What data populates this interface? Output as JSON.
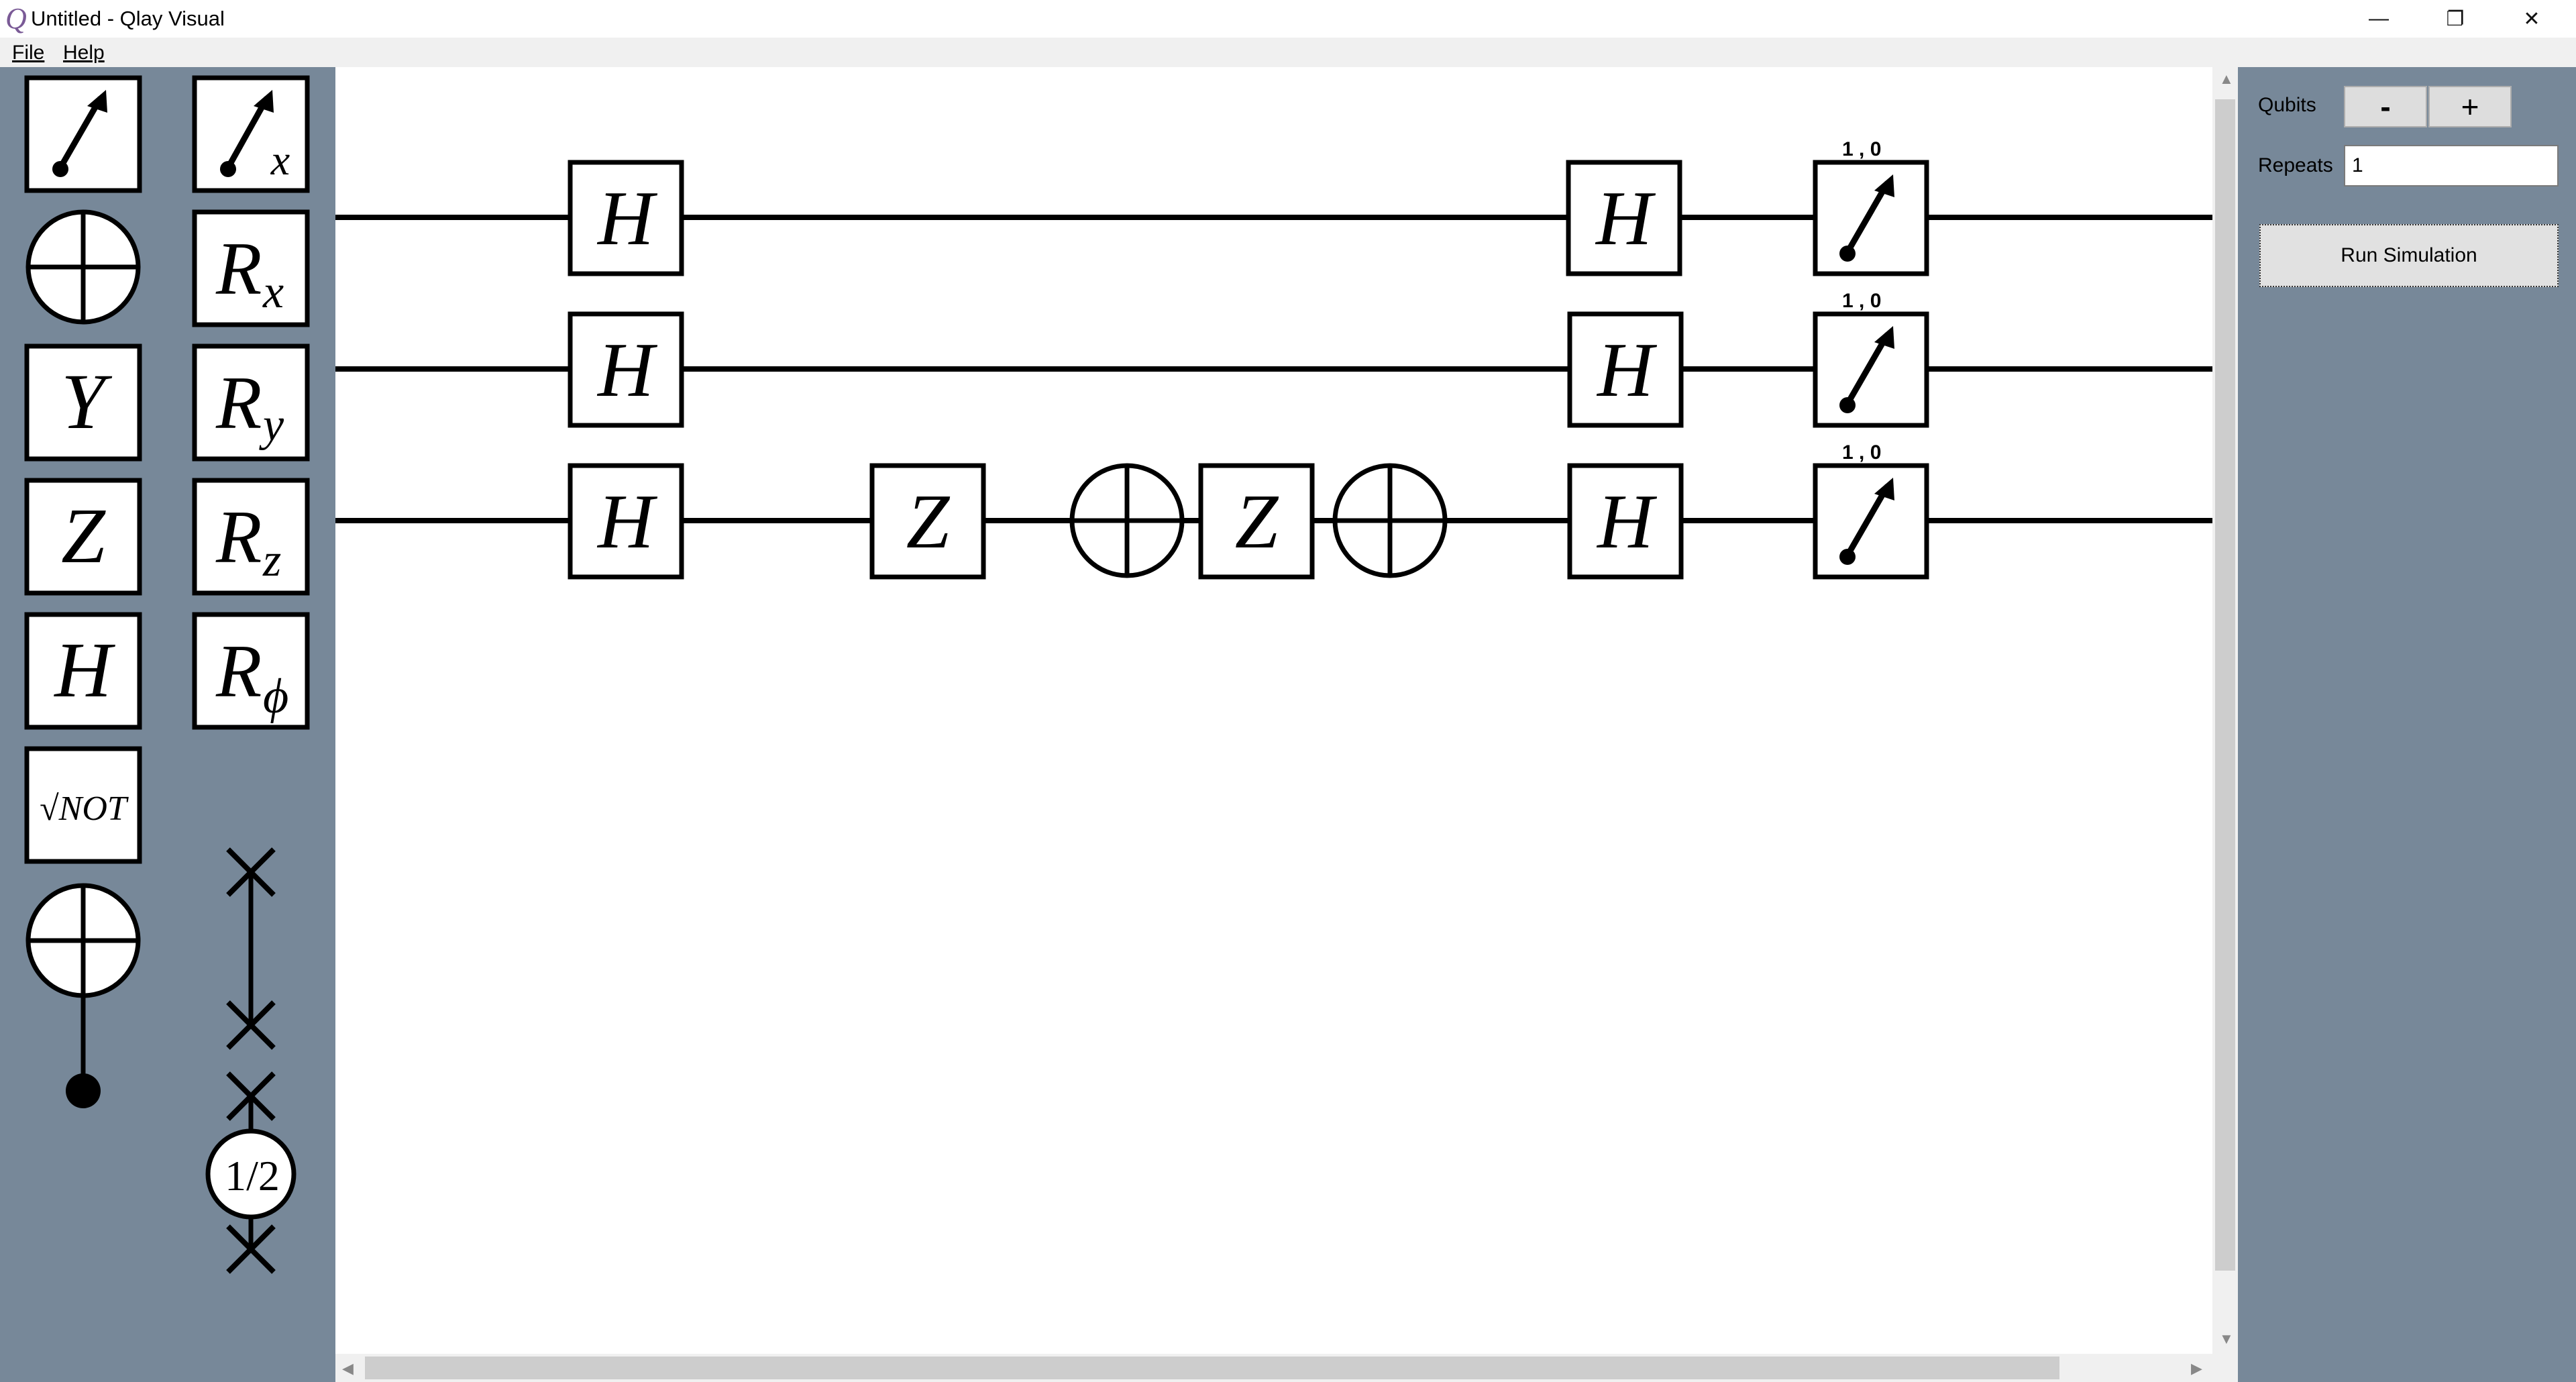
{
  "window": {
    "title": "Untitled - Qlay Visual",
    "icon_letter": "Q",
    "controls": {
      "minimize": "—",
      "restore": "❐",
      "close": "✕"
    }
  },
  "menu": {
    "file": "File",
    "help": "Help"
  },
  "palette": {
    "left_column": [
      "measure",
      "not",
      "Y",
      "Z",
      "H",
      "√NOT",
      "controlled-not"
    ],
    "right_column": [
      "measure-x",
      "Rx",
      "Ry",
      "Rz",
      "Rφ",
      "swap",
      "sqrt-swap"
    ],
    "sqrt_swap_label": "1/2",
    "sqrt_not_label": "√NOT"
  },
  "circuit": {
    "qubits": 3,
    "gates": [
      {
        "qubit": 0,
        "gate": "H"
      },
      {
        "qubit": 1,
        "gate": "H"
      },
      {
        "qubit": 2,
        "gate": "H"
      },
      {
        "qubit": 2,
        "gate": "Z"
      },
      {
        "qubit": 2,
        "gate": "NOT"
      },
      {
        "qubit": 2,
        "gate": "Z"
      },
      {
        "qubit": 2,
        "gate": "NOT"
      },
      {
        "qubit": 0,
        "gate": "H"
      },
      {
        "qubit": 1,
        "gate": "H"
      },
      {
        "qubit": 2,
        "gate": "H"
      },
      {
        "qubit": 0,
        "gate": "measure",
        "result": "1 , 0"
      },
      {
        "qubit": 1,
        "gate": "measure",
        "result": "1 , 0"
      },
      {
        "qubit": 2,
        "gate": "measure",
        "result": "1 , 0"
      }
    ]
  },
  "panel": {
    "qubits_label": "Qubits",
    "minus_label": "-",
    "plus_label": "+",
    "repeats_label": "Repeats",
    "repeats_value": "1",
    "run_label": "Run Simulation"
  },
  "colors": {
    "panel_bg": "#778899",
    "canvas_bg": "#ffffff",
    "icon_purple": "#7a5a96"
  }
}
